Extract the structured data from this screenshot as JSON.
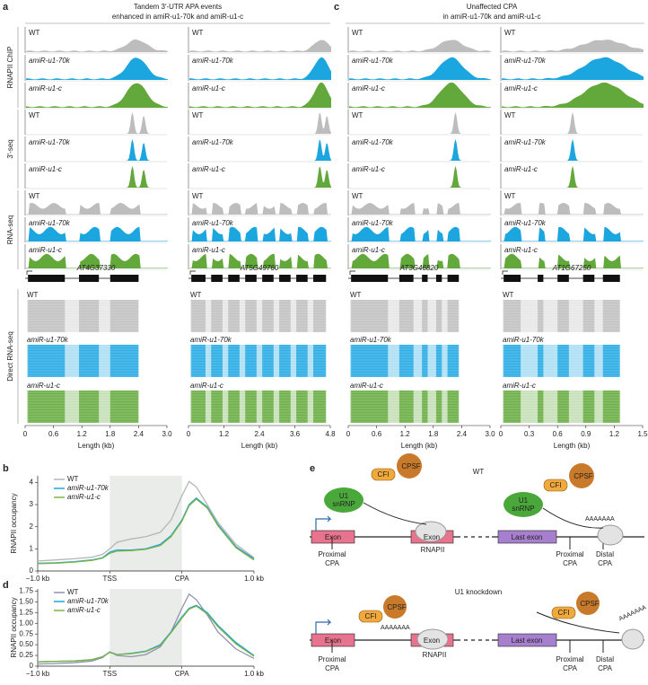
{
  "panel_labels": [
    "a",
    "b",
    "c",
    "d",
    "e"
  ],
  "panel_a": {
    "title": [
      "Tandem 3′-UTR APA events",
      "enhanced in amiR-u1-70k and amiR-u1-c"
    ]
  },
  "panel_c": {
    "title": [
      "Unaffected CPA",
      "in amiR-u1-70k and amiR-u1-c"
    ]
  },
  "assays": [
    "RNAPII ChIP",
    "3′-seq",
    "RNA-seq",
    "Direct RNA-seq"
  ],
  "samples": [
    "WT",
    "amiR-u1-70k",
    "amiR-u1-c"
  ],
  "sample_colors": [
    "#bdbdbd",
    "#1ba6e0",
    "#62a83a"
  ],
  "genes": [
    {
      "name": "AT4G37330",
      "length_ticks": [
        "0",
        "0.6",
        "1.2",
        "1.8",
        "2.4",
        "3.0"
      ]
    },
    {
      "name": "AT5G49760",
      "length_ticks": [
        "0",
        "1.2",
        "2.4",
        "3.6",
        "4.8"
      ]
    },
    {
      "name": "AT3G46820",
      "length_ticks": [
        "0",
        "0.6",
        "1.2",
        "1.8",
        "2.4",
        "3.0"
      ]
    },
    {
      "name": "AT1G67250",
      "length_ticks": [
        "0",
        "0.3",
        "0.6",
        "0.9",
        "1.2",
        "1.5"
      ]
    }
  ],
  "length_axis_label": "Length (kb)",
  "chart_data": [
    {
      "type": "line",
      "y_label": "RNAPII occupancy",
      "x": [
        0,
        0.25,
        0.5,
        0.75,
        0.9,
        1.0,
        1.1,
        1.3,
        1.5,
        1.7,
        1.85,
        2.0,
        2.1,
        2.2,
        2.35,
        2.5,
        2.75,
        3.0
      ],
      "xlim": [
        0,
        3
      ],
      "xticks": [
        {
          "value": 0,
          "label": "−1.0 kb"
        },
        {
          "value": 1,
          "label": "TSS"
        },
        {
          "value": 2,
          "label": "CPA"
        },
        {
          "value": 3,
          "label": "1.0 kb"
        }
      ],
      "ylim": [
        0,
        4.3
      ],
      "yticks": [
        0,
        1,
        2,
        3,
        4
      ],
      "shaded_region": [
        1,
        2
      ],
      "series": [
        {
          "name": "WT",
          "color": "#b5b5b5",
          "values": [
            0.45,
            0.5,
            0.55,
            0.62,
            0.75,
            1.0,
            1.3,
            1.45,
            1.55,
            1.75,
            2.3,
            3.4,
            4.05,
            3.8,
            3.0,
            2.2,
            1.2,
            0.6
          ]
        },
        {
          "name": "amiR-u1-70k",
          "color": "#1ba6e0",
          "values": [
            0.35,
            0.37,
            0.42,
            0.5,
            0.6,
            0.85,
            0.95,
            0.95,
            1.0,
            1.2,
            1.6,
            2.3,
            3.0,
            3.3,
            2.9,
            2.1,
            1.1,
            0.55
          ]
        },
        {
          "name": "amiR-u1-c",
          "color": "#7fb241",
          "values": [
            0.33,
            0.35,
            0.4,
            0.48,
            0.58,
            0.8,
            0.9,
            0.92,
            0.98,
            1.15,
            1.55,
            2.25,
            2.95,
            3.25,
            2.85,
            2.05,
            1.05,
            0.5
          ]
        }
      ]
    },
    {
      "type": "line",
      "y_label": "RNAPII occupancy",
      "x": [
        0,
        0.25,
        0.5,
        0.75,
        0.9,
        1.0,
        1.1,
        1.3,
        1.5,
        1.7,
        1.85,
        2.0,
        2.1,
        2.2,
        2.35,
        2.5,
        2.75,
        3.0
      ],
      "xlim": [
        0,
        3
      ],
      "xticks": [
        {
          "value": 0,
          "label": "−1.0 kb"
        },
        {
          "value": 1,
          "label": "TSS"
        },
        {
          "value": 2,
          "label": "CPA"
        },
        {
          "value": 3,
          "label": "1.0 kb"
        }
      ],
      "ylim": [
        0,
        1.8
      ],
      "yticks": [
        0,
        0.25,
        {
          "value": 0.5,
          "label": "0.50"
        },
        0.75,
        {
          "value": 1,
          "label": "1.00"
        },
        1.25,
        {
          "value": 1.5,
          "label": "1.50"
        },
        1.75
      ],
      "shaded_region": [
        1,
        2
      ],
      "series": [
        {
          "name": "WT",
          "color": "#8f93ad",
          "values": [
            0.05,
            0.06,
            0.08,
            0.12,
            0.2,
            0.33,
            0.25,
            0.22,
            0.27,
            0.45,
            0.8,
            1.35,
            1.68,
            1.55,
            1.2,
            0.8,
            0.4,
            0.18
          ]
        },
        {
          "name": "amiR-u1-70k",
          "color": "#1ba6e0",
          "values": [
            0.1,
            0.11,
            0.12,
            0.15,
            0.22,
            0.33,
            0.27,
            0.3,
            0.35,
            0.5,
            0.8,
            1.15,
            1.35,
            1.42,
            1.25,
            0.95,
            0.55,
            0.25
          ]
        },
        {
          "name": "amiR-u1-c",
          "color": "#7fb241",
          "values": [
            0.1,
            0.11,
            0.12,
            0.15,
            0.22,
            0.32,
            0.27,
            0.29,
            0.34,
            0.48,
            0.78,
            1.12,
            1.33,
            1.4,
            1.22,
            0.92,
            0.52,
            0.23
          ]
        }
      ]
    }
  ],
  "panel_e": {
    "conditions": [
      "WT",
      "U1 knockdown"
    ],
    "labels": {
      "u1": "U1",
      "snrnp": "snRNP",
      "cfi": "CFI",
      "cpsf": "CPSF",
      "polya": "AAAAAAA",
      "exon": "Exon",
      "last_exon": "Last exon",
      "rnapii": "RNAPII",
      "proximal": "Proximal",
      "distal": "Distal",
      "cpa": "CPA"
    }
  }
}
